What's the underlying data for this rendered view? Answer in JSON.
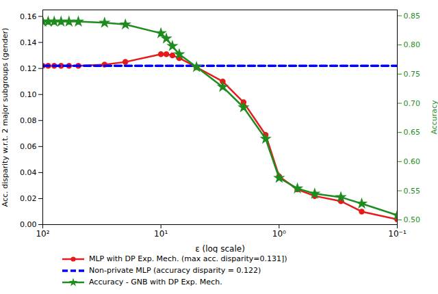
{
  "chart_data": {
    "type": "line",
    "x_label": "ε (log scale)",
    "y_label": "Acc. disparity w.r.t. 2 major subgroups (gender)",
    "y2_label": "Accuracy",
    "log": "x",
    "grid": false,
    "xlim": [
      100,
      0.1
    ],
    "xticks": [
      {
        "value": 100,
        "label": "10²"
      },
      {
        "value": 10,
        "label": "10¹"
      },
      {
        "value": 1,
        "label": "10⁰"
      },
      {
        "value": 0.1,
        "label": "10⁻¹"
      }
    ],
    "ylim": [
      0,
      0.165
    ],
    "yticks": [
      {
        "value": 0,
        "label": "0.00"
      },
      {
        "value": 0.02,
        "label": "0.02"
      },
      {
        "value": 0.04,
        "label": "0.04"
      },
      {
        "value": 0.06,
        "label": "0.06"
      },
      {
        "value": 0.08,
        "label": "0.08"
      },
      {
        "value": 0.1,
        "label": "0.10"
      },
      {
        "value": 0.12,
        "label": "0.12"
      },
      {
        "value": 0.14,
        "label": "0.14"
      },
      {
        "value": 0.16,
        "label": "0.16"
      }
    ],
    "y2lim": [
      0.492,
      0.86
    ],
    "y2ticks": [
      {
        "value": 0.5,
        "label": "0.50"
      },
      {
        "value": 0.55,
        "label": "0.55"
      },
      {
        "value": 0.6,
        "label": "0.60"
      },
      {
        "value": 0.65,
        "label": "0.65"
      },
      {
        "value": 0.7,
        "label": "0.70"
      },
      {
        "value": 0.75,
        "label": "0.75"
      },
      {
        "value": 0.8,
        "label": "0.80"
      },
      {
        "value": 0.85,
        "label": "0.85"
      }
    ],
    "x": [
      100,
      90,
      80,
      70,
      60,
      50,
      30,
      20,
      10,
      9,
      8,
      7,
      5,
      3,
      2,
      1.3,
      1,
      0.7,
      0.5,
      0.3,
      0.2,
      0.1
    ],
    "series": [
      {
        "name": "MLP with DP Exp. Mech. (max acc. disparity=0.131])",
        "color": "#e41a1c",
        "marker": "circle",
        "line_style": "solid",
        "values": [
          0.122,
          0.122,
          0.122,
          0.122,
          0.122,
          0.122,
          0.123,
          0.125,
          0.131,
          0.131,
          0.13,
          0.128,
          0.121,
          0.11,
          0.094,
          0.069,
          0.037,
          0.027,
          0.022,
          0.018,
          0.01,
          0.004
        ]
      },
      {
        "name": "Non-private MLP (accuracy disparity = 0.122)",
        "color": "#0000ff",
        "marker": "none",
        "line_style": "dashed",
        "values": [
          0.122,
          0.122,
          0.122,
          0.122,
          0.122,
          0.122,
          0.122,
          0.122,
          0.122,
          0.122,
          0.122,
          0.122,
          0.122,
          0.122,
          0.122,
          0.122,
          0.122,
          0.122,
          0.122,
          0.122,
          0.122,
          0.122
        ]
      },
      {
        "name": "Accuracy - GNB with DP Exp. Mech.",
        "color": "#1e8c1e",
        "marker": "star",
        "line_style": "solid",
        "axis": "y2",
        "values": [
          0.84,
          0.84,
          0.84,
          0.84,
          0.84,
          0.84,
          0.838,
          0.835,
          0.82,
          0.811,
          0.798,
          0.784,
          0.762,
          0.728,
          0.693,
          0.639,
          0.572,
          0.554,
          0.545,
          0.539,
          0.528,
          0.508
        ]
      }
    ]
  }
}
